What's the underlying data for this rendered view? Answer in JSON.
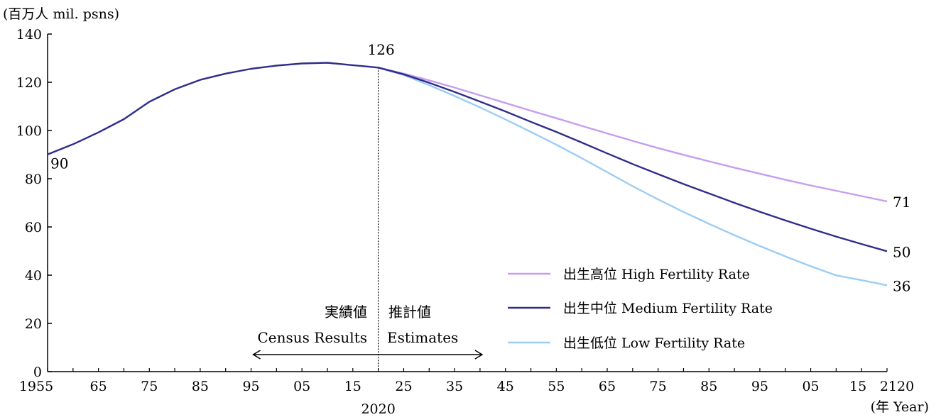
{
  "chart_data": {
    "type": "line",
    "ylabel": "(百万人 mil. psns)",
    "xlabel": "(年 Year)",
    "ylim": [
      0,
      140
    ],
    "yticks": [
      0,
      20,
      40,
      60,
      80,
      100,
      120,
      140
    ],
    "xlim": [
      1955,
      2120
    ],
    "xticks": [
      {
        "x": 1955,
        "label": "1955"
      },
      {
        "x": 1965,
        "label": "65"
      },
      {
        "x": 1975,
        "label": "75"
      },
      {
        "x": 1985,
        "label": "85"
      },
      {
        "x": 1995,
        "label": "95"
      },
      {
        "x": 2005,
        "label": "05"
      },
      {
        "x": 2015,
        "label": "15"
      },
      {
        "x": 2025,
        "label": "25"
      },
      {
        "x": 2035,
        "label": "35"
      },
      {
        "x": 2045,
        "label": "45"
      },
      {
        "x": 2055,
        "label": "55"
      },
      {
        "x": 2065,
        "label": "65"
      },
      {
        "x": 2075,
        "label": "75"
      },
      {
        "x": 2085,
        "label": "85"
      },
      {
        "x": 2095,
        "label": "95"
      },
      {
        "x": 2105,
        "label": "05"
      },
      {
        "x": 2115,
        "label": "15"
      },
      {
        "x": 2120,
        "label": "2120"
      }
    ],
    "divider": {
      "x": 2020,
      "label": "2020",
      "value_label": "126"
    },
    "annotations": {
      "left_jp": "実績値",
      "left_en": "Census Results",
      "right_jp": "推計値",
      "right_en": "Estimates",
      "start_label": "90",
      "arrow_from": 1995,
      "arrow_to": 2040
    },
    "legend_position": "lower-right",
    "series": [
      {
        "name": "出生高位 High Fertility Rate",
        "color": "#c79cf0",
        "x": [
          2020,
          2025,
          2030,
          2035,
          2040,
          2045,
          2050,
          2055,
          2060,
          2065,
          2070,
          2075,
          2080,
          2085,
          2090,
          2095,
          2100,
          2105,
          2110,
          2115,
          2120
        ],
        "values": [
          126.1,
          123.6,
          120.8,
          117.8,
          114.6,
          111.4,
          108.2,
          105.1,
          101.9,
          98.8,
          95.7,
          92.7,
          89.9,
          87.2,
          84.6,
          82.1,
          79.6,
          77.2,
          75.0,
          72.8,
          70.6
        ],
        "end_label": "71"
      },
      {
        "name": "出生中位 Medium Fertility Rate",
        "color": "#2e2e8a",
        "x": [
          1955,
          1960,
          1965,
          1970,
          1975,
          1980,
          1985,
          1990,
          1995,
          2000,
          2005,
          2010,
          2015,
          2020,
          2025,
          2030,
          2035,
          2040,
          2045,
          2050,
          2055,
          2060,
          2065,
          2070,
          2075,
          2080,
          2085,
          2090,
          2095,
          2100,
          2105,
          2110,
          2115,
          2120
        ],
        "values": [
          90.1,
          94.3,
          99.2,
          104.7,
          111.9,
          117.1,
          121.0,
          123.6,
          125.6,
          126.9,
          127.8,
          128.1,
          127.1,
          126.1,
          123.3,
          119.8,
          116.0,
          112.0,
          107.9,
          103.6,
          99.4,
          95.0,
          90.5,
          86.1,
          81.9,
          77.8,
          73.9,
          70.0,
          66.3,
          62.7,
          59.3,
          56.0,
          52.9,
          49.9
        ],
        "end_label": "50"
      },
      {
        "name": "出生低位 Low Fertility Rate",
        "color": "#9ccdf5",
        "x": [
          2020,
          2025,
          2030,
          2035,
          2040,
          2045,
          2050,
          2055,
          2060,
          2065,
          2070,
          2075,
          2080,
          2085,
          2090,
          2095,
          2100,
          2105,
          2110,
          2115,
          2120
        ],
        "values": [
          126.1,
          123.0,
          118.8,
          114.3,
          109.6,
          104.6,
          99.4,
          94.1,
          88.5,
          82.7,
          76.9,
          71.4,
          66.2,
          61.3,
          56.6,
          52.1,
          47.8,
          43.7,
          39.9,
          37.9,
          35.8
        ],
        "end_label": "36"
      }
    ]
  }
}
